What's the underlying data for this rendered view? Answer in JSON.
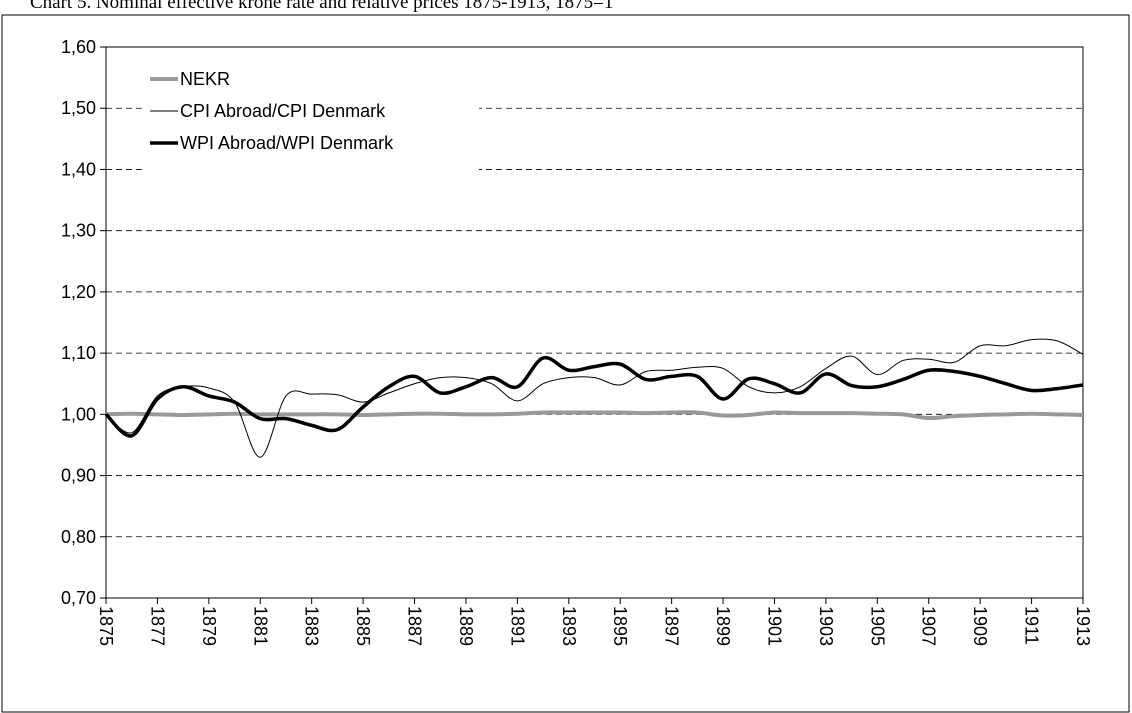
{
  "chart_data": {
    "type": "line",
    "title": "Chart 5. Nominal effective krone rate and relative prices 1875-1913, 1875=1",
    "x": [
      1875,
      1876,
      1877,
      1878,
      1879,
      1880,
      1881,
      1882,
      1883,
      1884,
      1885,
      1886,
      1887,
      1888,
      1889,
      1890,
      1891,
      1892,
      1893,
      1894,
      1895,
      1896,
      1897,
      1898,
      1899,
      1900,
      1901,
      1902,
      1903,
      1904,
      1905,
      1906,
      1907,
      1908,
      1909,
      1910,
      1911,
      1912,
      1913
    ],
    "xlim": [
      1875,
      1913
    ],
    "xticks": [
      1875,
      1877,
      1879,
      1881,
      1883,
      1885,
      1887,
      1889,
      1891,
      1893,
      1895,
      1897,
      1899,
      1901,
      1903,
      1905,
      1907,
      1909,
      1911,
      1913
    ],
    "ylim": [
      0.7,
      1.6
    ],
    "yticks": [
      {
        "value": 0.7,
        "label": "0,70"
      },
      {
        "value": 0.8,
        "label": "0,80"
      },
      {
        "value": 0.9,
        "label": "0,90"
      },
      {
        "value": 1.0,
        "label": "1,00"
      },
      {
        "value": 1.1,
        "label": "1,10"
      },
      {
        "value": 1.2,
        "label": "1,20"
      },
      {
        "value": 1.3,
        "label": "1,30"
      },
      {
        "value": 1.4,
        "label": "1,40"
      },
      {
        "value": 1.5,
        "label": "1,50"
      },
      {
        "value": 1.6,
        "label": "1,60"
      }
    ],
    "grid": true,
    "legend": "upper left",
    "series": [
      {
        "name": "NEKR",
        "color": "#999999",
        "width": 4,
        "values": [
          1.0,
          1.001,
          1.0,
          0.999,
          1.0,
          1.001,
          1.0,
          1.0,
          1.0,
          1.0,
          0.999,
          1.0,
          1.001,
          1.001,
          1.0,
          1.0,
          1.001,
          1.003,
          1.003,
          1.003,
          1.003,
          1.002,
          1.003,
          1.003,
          0.998,
          0.999,
          1.003,
          1.002,
          1.002,
          1.002,
          1.001,
          1.0,
          0.994,
          0.997,
          0.999,
          1.0,
          1.001,
          1.0,
          0.999
        ]
      },
      {
        "name": "CPI Abroad/CPI Denmark",
        "color": "#000000",
        "width": 1,
        "values": [
          1.0,
          0.97,
          1.03,
          1.045,
          1.043,
          1.02,
          0.93,
          1.03,
          1.033,
          1.032,
          1.02,
          1.035,
          1.05,
          1.06,
          1.06,
          1.05,
          1.022,
          1.05,
          1.06,
          1.06,
          1.048,
          1.07,
          1.072,
          1.077,
          1.075,
          1.045,
          1.035,
          1.045,
          1.075,
          1.095,
          1.065,
          1.088,
          1.09,
          1.085,
          1.112,
          1.112,
          1.122,
          1.12,
          1.098
        ]
      },
      {
        "name": "WPI Abroad/WPI Denmark",
        "color": "#000000",
        "width": 3.5,
        "values": [
          1.0,
          0.965,
          1.025,
          1.045,
          1.03,
          1.02,
          0.993,
          0.993,
          0.982,
          0.975,
          1.012,
          1.045,
          1.062,
          1.035,
          1.045,
          1.06,
          1.045,
          1.092,
          1.072,
          1.078,
          1.082,
          1.057,
          1.062,
          1.062,
          1.025,
          1.058,
          1.05,
          1.035,
          1.066,
          1.047,
          1.045,
          1.057,
          1.072,
          1.07,
          1.062,
          1.05,
          1.039,
          1.042,
          1.048
        ]
      }
    ]
  }
}
